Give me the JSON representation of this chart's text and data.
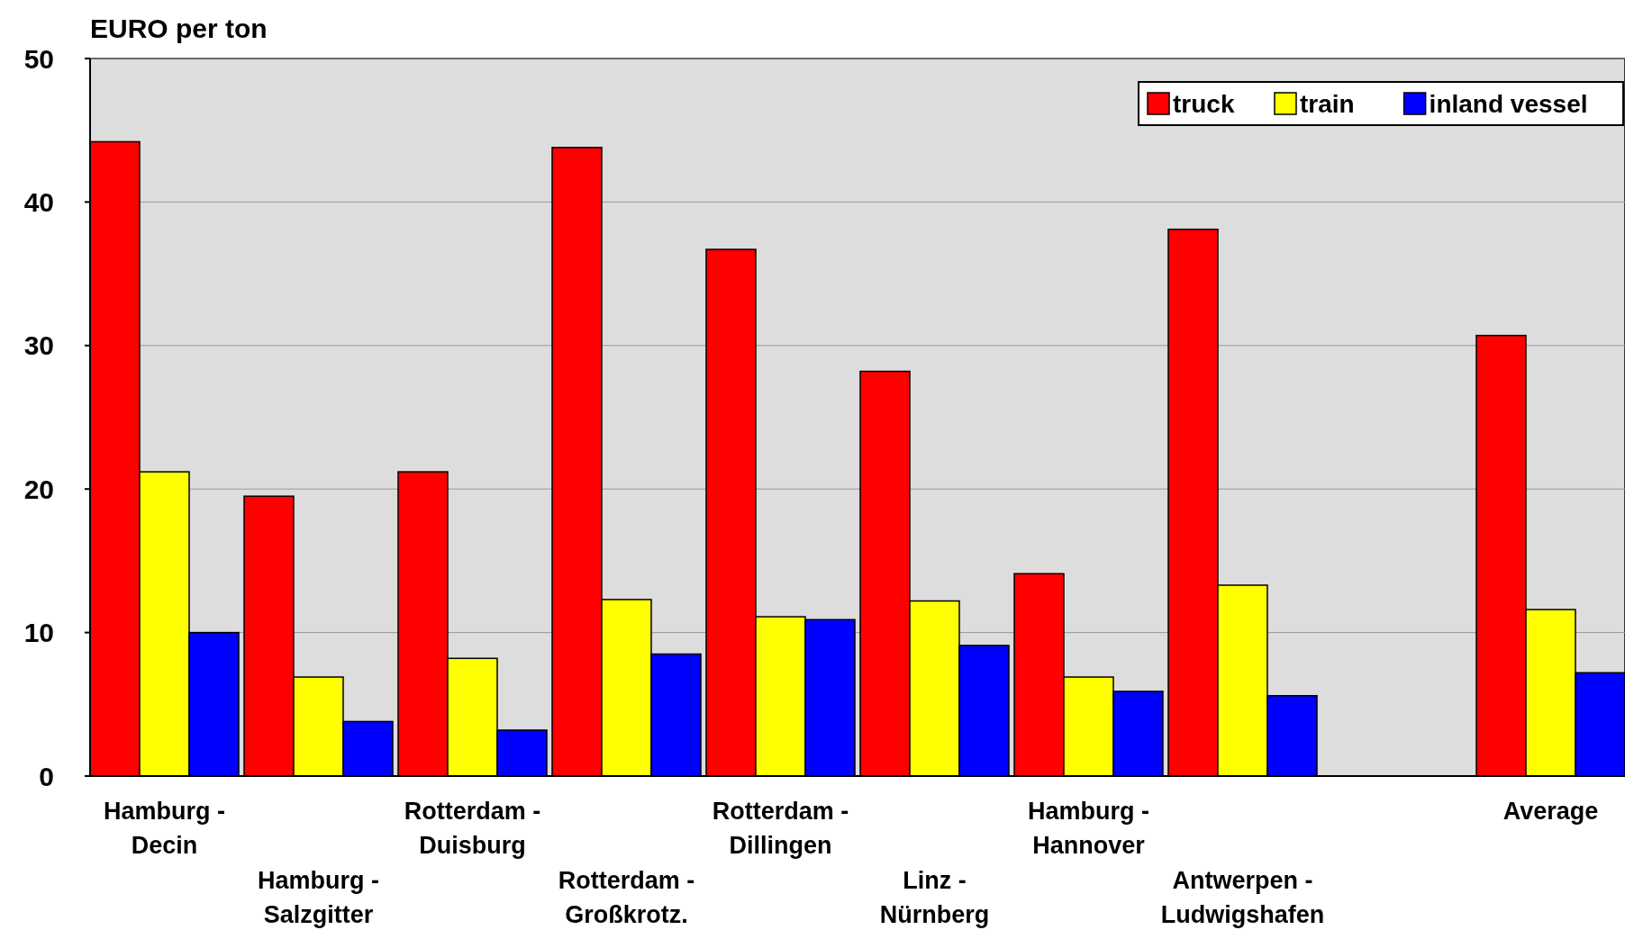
{
  "chart_data": {
    "type": "bar",
    "ylabel": "EURO per ton",
    "categories": [
      "Hamburg - Decin",
      "Hamburg - Salzgitter",
      "Rotterdam - Duisburg",
      "Rotterdam - Großkrotz.",
      "Rotterdam - Dillingen",
      "Linz - Nürnberg",
      "Hamburg - Hannover",
      "Antwerpen - Ludwigshafen",
      null,
      "Average"
    ],
    "series": [
      {
        "name": "truck",
        "color": "#ff0000",
        "values": [
          44.2,
          19.5,
          21.2,
          43.8,
          36.7,
          28.2,
          14.1,
          38.1,
          null,
          30.7
        ]
      },
      {
        "name": "train",
        "color": "#ffff00",
        "values": [
          21.2,
          6.9,
          8.2,
          12.3,
          11.1,
          12.2,
          6.9,
          13.3,
          null,
          11.6
        ]
      },
      {
        "name": "inland vessel",
        "color": "#0000ff",
        "values": [
          10.0,
          3.8,
          3.2,
          8.5,
          10.9,
          9.1,
          5.9,
          5.6,
          null,
          7.2
        ]
      }
    ],
    "ylim": [
      0,
      50
    ],
    "yticks": [
      0,
      10,
      20,
      30,
      40,
      50
    ],
    "grid": "y",
    "legend": "top right"
  }
}
